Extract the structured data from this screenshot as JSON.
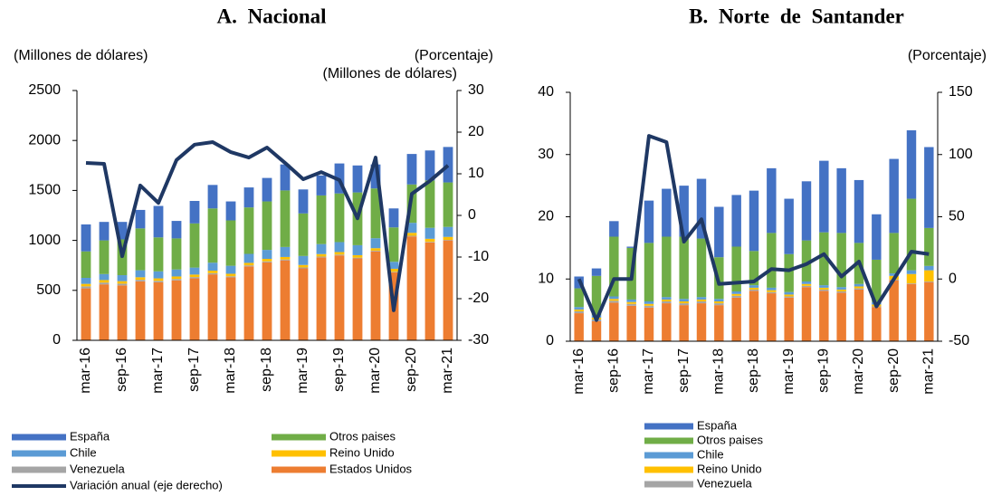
{
  "chart_data": [
    {
      "type": "bar",
      "title": "A. Nacional",
      "y_label": "(Millones de dólares)",
      "y2_label": "(Porcentaje)",
      "stacked": true,
      "categories": [
        "mar-16",
        null,
        "sep-16",
        null,
        "mar-17",
        null,
        "sep-17",
        null,
        "mar-18",
        null,
        "sep-18",
        null,
        "mar-19",
        null,
        "sep-19",
        null,
        "mar-20",
        null,
        "sep-20",
        null,
        "mar-21"
      ],
      "ylim": [
        0,
        2500
      ],
      "yticks": [
        0,
        500,
        1000,
        1500,
        2000,
        2500
      ],
      "y2lim": [
        -30,
        30
      ],
      "y2ticks": [
        -30,
        -20,
        -10,
        0,
        10,
        20,
        30
      ],
      "series": [
        {
          "name": "Estados Unidos",
          "color": "#ed7d31",
          "values": [
            520,
            560,
            550,
            590,
            580,
            600,
            620,
            660,
            630,
            740,
            780,
            800,
            720,
            830,
            850,
            820,
            890,
            680,
            1040,
            980,
            1000
          ]
        },
        {
          "name": "Venezuela",
          "color": "#a5a5a5",
          "values": [
            20,
            18,
            17,
            16,
            15,
            14,
            13,
            12,
            11,
            10,
            10,
            9,
            9,
            8,
            8,
            7,
            7,
            6,
            6,
            6,
            5
          ]
        },
        {
          "name": "Reino Unido",
          "color": "#ffc000",
          "values": [
            25,
            25,
            25,
            25,
            25,
            25,
            25,
            25,
            25,
            25,
            25,
            25,
            25,
            25,
            25,
            25,
            25,
            30,
            30,
            30,
            30
          ]
        },
        {
          "name": "Chile",
          "color": "#5b9bd5",
          "values": [
            60,
            60,
            60,
            70,
            70,
            70,
            70,
            80,
            80,
            90,
            90,
            100,
            90,
            100,
            100,
            100,
            100,
            70,
            100,
            110,
            100
          ]
        },
        {
          "name": "Otros paises",
          "color": "#70ad47",
          "values": [
            265,
            337,
            358,
            419,
            340,
            311,
            442,
            543,
            454,
            465,
            485,
            566,
            426,
            487,
            487,
            528,
            498,
            344,
            384,
            474,
            445
          ]
        },
        {
          "name": "España",
          "color": "#4472c4",
          "values": [
            270,
            185,
            175,
            185,
            315,
            175,
            225,
            235,
            190,
            200,
            235,
            260,
            240,
            200,
            300,
            270,
            240,
            190,
            305,
            300,
            355
          ]
        },
        {
          "name": "Variación anual (eje derecho)",
          "color": "#1f3864",
          "axis": "y2",
          "type": "line",
          "values": [
            12.6,
            12.4,
            -9.8,
            7.2,
            3.0,
            13.3,
            17.0,
            17.6,
            15.2,
            13.9,
            16.3,
            12.6,
            8.7,
            10.4,
            8.5,
            -0.7,
            13.9,
            -22.8,
            5.2,
            8.3,
            12.0
          ]
        }
      ]
    },
    {
      "type": "bar",
      "title": "B. Norte de Santander",
      "y_label": "(Millones de dólares)",
      "y2_label": "(Porcentaje)",
      "stacked": true,
      "categories": [
        "mar-16",
        null,
        "sep-16",
        null,
        "mar-17",
        null,
        "sep-17",
        null,
        "mar-18",
        null,
        "sep-18",
        null,
        "mar-19",
        null,
        "sep-19",
        null,
        "mar-20",
        null,
        "sep-20",
        null,
        "mar-21"
      ],
      "ylim": [
        0,
        40
      ],
      "yticks": [
        0,
        10,
        20,
        30,
        40
      ],
      "y2lim": [
        -50,
        150
      ],
      "y2ticks": [
        -50,
        0,
        50,
        100,
        150
      ],
      "series": [
        {
          "color": "#ed7d31",
          "values": [
            4.5,
            3.2,
            6.2,
            5.7,
            5.4,
            6.1,
            5.8,
            6.1,
            5.8,
            7.0,
            8.1,
            7.7,
            7.0,
            8.7,
            8.1,
            7.8,
            8.3,
            5.5,
            9.8,
            9.2,
            9.5
          ]
        },
        {
          "name": "Venezuela",
          "color": "#a5a5a5",
          "values": [
            0.3,
            0.3,
            0.3,
            0.3,
            0.3,
            0.3,
            0.3,
            0.3,
            0.3,
            0.3,
            0.2,
            0.2,
            0.2,
            0.2,
            0.2,
            0.2,
            0.2,
            0.1,
            0.1,
            0.1,
            0.1
          ]
        },
        {
          "name": "Reino Unido",
          "color": "#ffc000",
          "values": [
            0.3,
            0.3,
            0.3,
            0.3,
            0.3,
            0.3,
            0.3,
            0.3,
            0.3,
            0.3,
            0.3,
            0.3,
            0.3,
            0.3,
            0.3,
            0.3,
            0.3,
            0.3,
            0.6,
            1.5,
            1.8
          ]
        },
        {
          "name": "Chile",
          "color": "#5b9bd5",
          "values": [
            0.4,
            0.4,
            0.4,
            0.4,
            0.4,
            0.4,
            0.4,
            0.4,
            0.4,
            0.4,
            0.4,
            0.4,
            0.4,
            0.4,
            0.4,
            0.4,
            0.4,
            0.4,
            0.4,
            0.6,
            0.7
          ]
        },
        {
          "name": "Otros paises",
          "color": "#70ad47",
          "values": [
            3.0,
            6.3,
            9.6,
            8.3,
            9.4,
            9.7,
            10.0,
            9.4,
            6.7,
            7.2,
            5.5,
            8.8,
            6.1,
            6.6,
            8.5,
            8.7,
            6.6,
            6.8,
            6.5,
            11.5,
            6.1
          ]
        },
        {
          "name": "España",
          "color": "#4472c4",
          "values": [
            1.9,
            1.2,
            2.5,
            0.2,
            6.8,
            7.7,
            8.2,
            9.6,
            8.1,
            8.3,
            9.7,
            10.4,
            8.9,
            9.5,
            11.5,
            10.4,
            10.1,
            7.3,
            11.9,
            11.0,
            13.0
          ]
        },
        {
          "color": "#1f3864",
          "axis": "y2",
          "type": "line",
          "values": [
            0,
            -33,
            0,
            0,
            115,
            110,
            30,
            48,
            -4,
            -3,
            -2,
            8,
            7,
            12,
            20,
            2,
            14,
            -22,
            0,
            22,
            20
          ]
        }
      ]
    }
  ]
}
